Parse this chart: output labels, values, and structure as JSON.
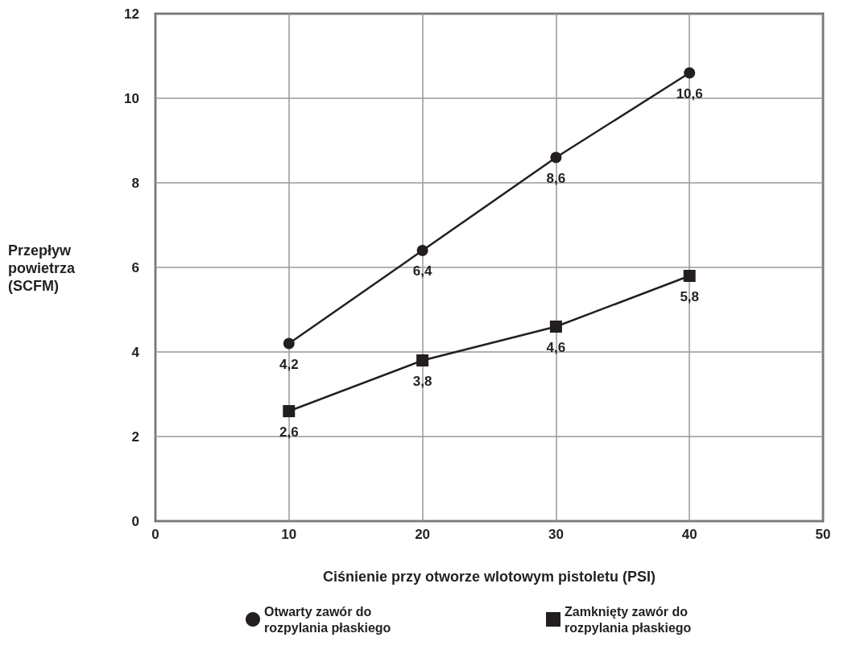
{
  "chart_data": {
    "type": "line",
    "xlabel": "Ciśnienie przy otworze wlotowym pistoletu (PSI)",
    "ylabel": "Przepływ powietrza (SCFM)",
    "x": [
      10,
      20,
      30,
      40
    ],
    "xlim": [
      0,
      50
    ],
    "xticks": [
      0,
      10,
      20,
      30,
      40,
      50
    ],
    "ylim": [
      0,
      12
    ],
    "yticks": [
      0,
      2,
      4,
      6,
      8,
      10,
      12
    ],
    "grid": true,
    "legend": "bottom",
    "line_style": "solid",
    "series": [
      {
        "name": "Otwarty zawór do rozpylania płaskiego",
        "color": "#231f20",
        "marker": "circle",
        "values": [
          4.2,
          6.4,
          8.6,
          10.6
        ],
        "value_labels": [
          "4,2",
          "6,4",
          "8,6",
          "10,6"
        ]
      },
      {
        "name": "Zamknięty zawór do rozpylania płaskiego",
        "color": "#231f20",
        "marker": "square",
        "values": [
          2.6,
          3.8,
          4.6,
          5.8
        ],
        "value_labels": [
          "2,6",
          "3,8",
          "4,6",
          "5,8"
        ]
      }
    ]
  }
}
